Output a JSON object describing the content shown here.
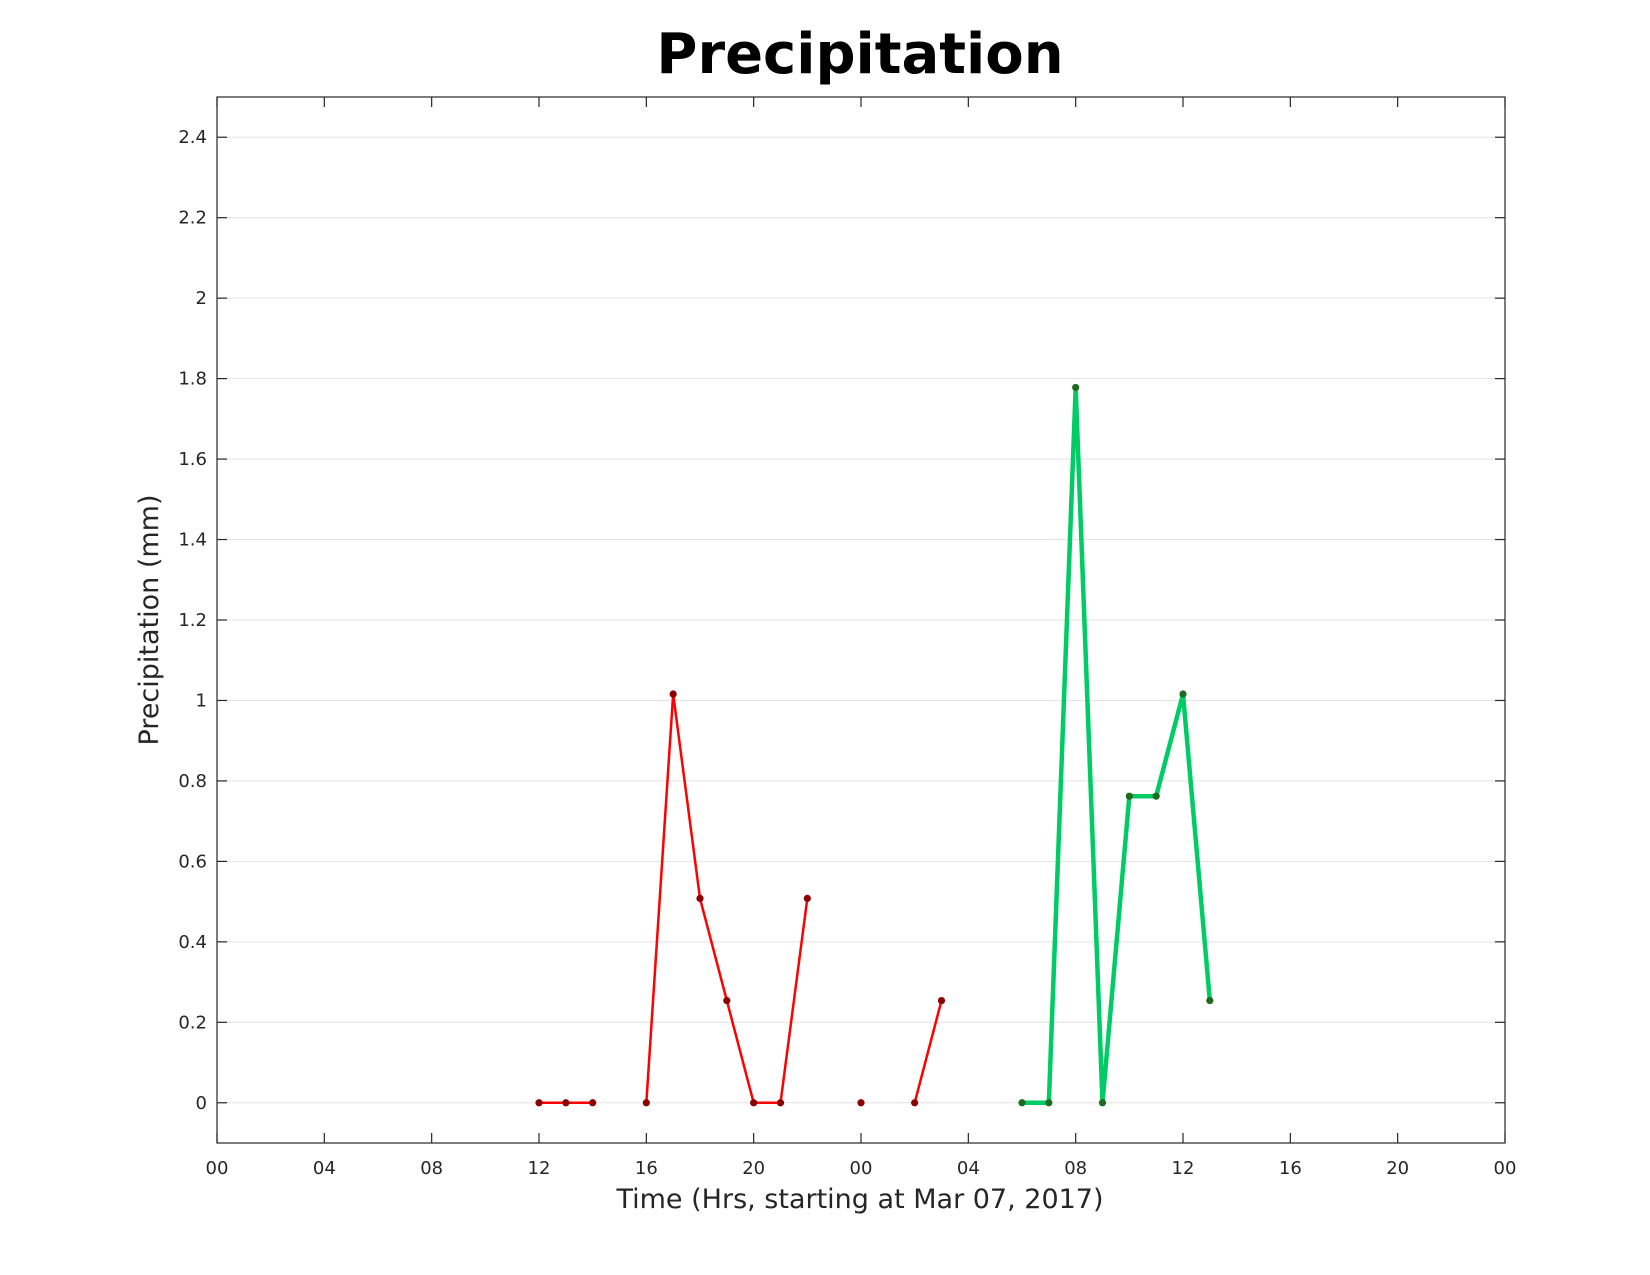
{
  "chart_data": {
    "type": "line",
    "title": "Precipitation",
    "xlabel": "Time (Hrs, starting at Mar 07, 2017)",
    "ylabel": "Precipitation (mm)",
    "xlim": [
      0,
      48
    ],
    "ylim": [
      -0.1,
      2.5
    ],
    "grid": "y-major",
    "x_ticks": {
      "values": [
        0,
        4,
        8,
        12,
        16,
        20,
        24,
        28,
        32,
        36,
        40,
        44,
        48
      ],
      "labels": [
        "00",
        "04",
        "08",
        "12",
        "16",
        "20",
        "00",
        "04",
        "08",
        "12",
        "16",
        "20",
        "00"
      ]
    },
    "y_ticks": {
      "values": [
        0,
        0.2,
        0.4,
        0.6,
        0.8,
        1,
        1.2,
        1.4,
        1.6,
        1.8,
        2,
        2.2,
        2.4
      ],
      "labels": [
        "0",
        "0.2",
        "0.4",
        "0.6",
        "0.8",
        "1",
        "1.2",
        "1.4",
        "1.6",
        "1.8",
        "2",
        "2.2",
        "2.4"
      ]
    },
    "series": [
      {
        "color": "#ff0000",
        "marker_color": "#8b0000",
        "line_width": 2.5,
        "segments": [
          [
            [
              12,
              0
            ],
            [
              13,
              0
            ],
            [
              14,
              0
            ]
          ],
          [
            [
              16,
              0
            ],
            [
              17,
              1.016
            ],
            [
              18,
              0.508
            ],
            [
              19,
              0.254
            ],
            [
              20,
              0
            ],
            [
              21,
              0
            ],
            [
              22,
              0.508
            ]
          ],
          [
            [
              24,
              0
            ]
          ],
          [
            [
              26,
              0
            ],
            [
              27,
              0.254
            ]
          ]
        ]
      },
      {
        "color": "#00cc66",
        "marker_color": "#1e6b1e",
        "line_width": 4.5,
        "segments": [
          [
            [
              30,
              0
            ],
            [
              31,
              0
            ],
            [
              32,
              1.778
            ],
            [
              33,
              0
            ],
            [
              34,
              0.762
            ],
            [
              35,
              0.762
            ],
            [
              36,
              1.016
            ],
            [
              37,
              0.254
            ]
          ]
        ]
      }
    ]
  }
}
